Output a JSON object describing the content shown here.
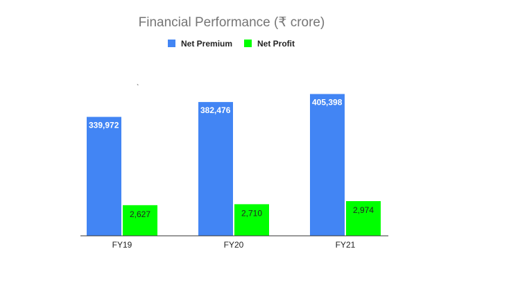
{
  "colors": {
    "net_premium": "#4285f4",
    "net_profit": "#00ff00",
    "axis": "#333333",
    "title": "#757575"
  },
  "chart_data": {
    "type": "bar",
    "title": "Financial Performance (₹ crore)",
    "xlabel": "",
    "ylabel": "",
    "categories": [
      "FY19",
      "FY20",
      "FY21"
    ],
    "series": [
      {
        "name": "Net Premium",
        "color": "#4285f4",
        "values": [
          339972,
          382476,
          405398
        ],
        "value_labels": [
          "339,972",
          "382,476",
          "405,398"
        ]
      },
      {
        "name": "Net Profit",
        "color": "#00ff00",
        "values": [
          2627,
          2710,
          2974
        ],
        "value_labels": [
          "2,627",
          "2,710",
          "2,974"
        ]
      }
    ],
    "legend_position": "top",
    "grid": false
  }
}
